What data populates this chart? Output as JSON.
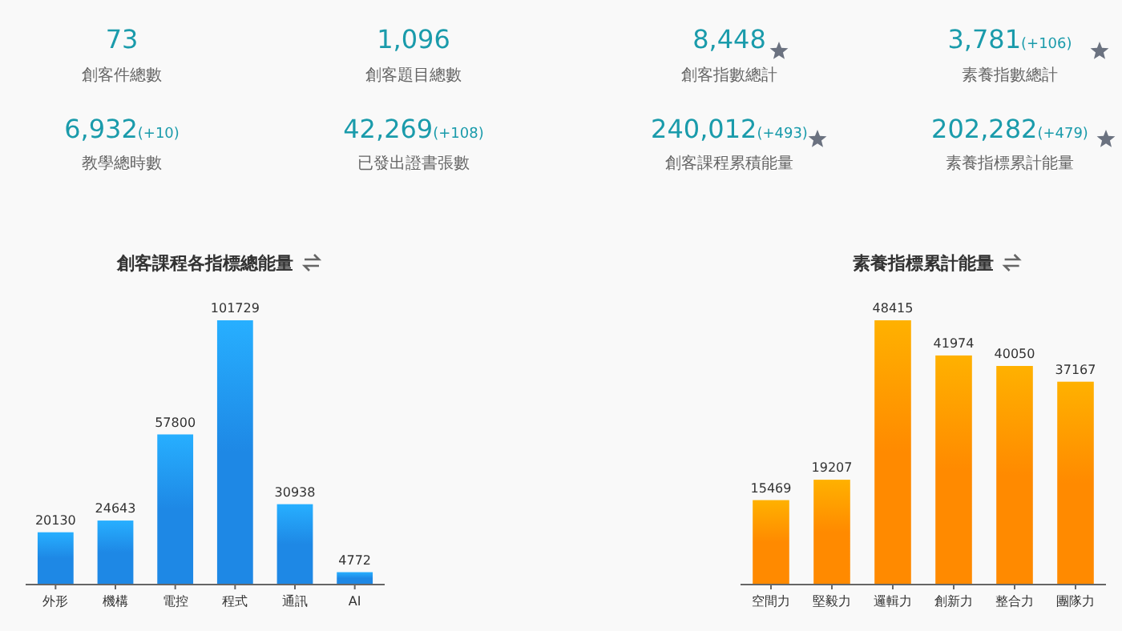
{
  "chart_data": [
    {
      "type": "other",
      "annotations": [
        "73",
        "創客件總數",
        "1,096",
        "創客題目總數",
        "8,448",
        "創客指數總計",
        "3,781(+106)",
        "素養指數總計",
        "6,932(+10)",
        "教學總時數",
        "42,269(+108)",
        "已發出證書張數",
        "240,012(+493)",
        "創客課程累積能量",
        "202,282(+479)",
        "素養指標累計能量"
      ]
    },
    {
      "type": "bar",
      "title": "創客課程各指標總能量",
      "categories": [
        "外形",
        "機構",
        "電控",
        "程式",
        "通訊",
        "AI"
      ],
      "series": [
        {
          "color": "#1e88e5",
          "values": [
            20130,
            24643,
            57800,
            101729,
            30938,
            4772
          ]
        }
      ],
      "data_labels": true
    },
    {
      "type": "bar",
      "title": "素養指標累計能量",
      "categories": [
        "空間力",
        "堅毅力",
        "邏輯力",
        "創新力",
        "整合力",
        "團隊力"
      ],
      "series": [
        {
          "color": "#ff8a00",
          "values": [
            15469,
            19207,
            48415,
            41974,
            40050,
            37167
          ]
        }
      ],
      "data_labels": true
    }
  ]
}
